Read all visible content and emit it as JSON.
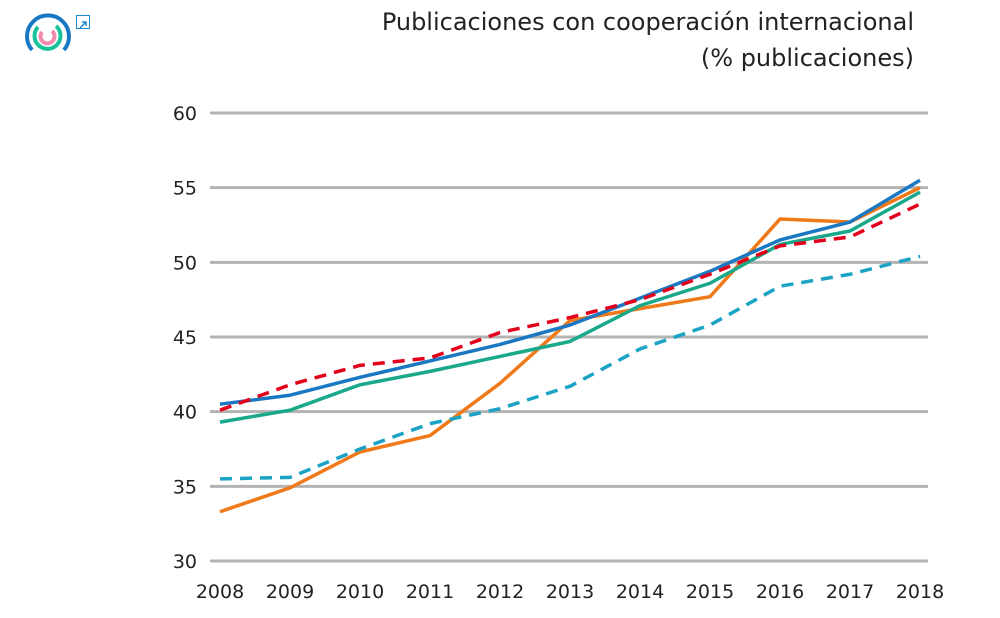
{
  "chart_data": {
    "type": "line",
    "title": "Publicaciones con cooperación internacional",
    "subtitle": "(% publicaciones)",
    "xlabel": "",
    "ylabel": "",
    "ylim": [
      30,
      60
    ],
    "yticks": [
      30,
      35,
      40,
      45,
      50,
      55,
      60
    ],
    "grid": true,
    "x": [
      2008,
      2009,
      2010,
      2011,
      2012,
      2013,
      2014,
      2015,
      2016,
      2017,
      2018
    ],
    "series": [
      {
        "color": "#f07a1a",
        "dash": false,
        "values": [
          33.3,
          34.9,
          37.3,
          38.4,
          41.9,
          46.1,
          46.9,
          47.7,
          52.9,
          52.7,
          55.0
        ]
      },
      {
        "color": "#19a88a",
        "dash": false,
        "values": [
          39.3,
          40.1,
          41.8,
          42.7,
          43.7,
          44.7,
          47.1,
          48.6,
          51.2,
          52.1,
          54.7
        ]
      },
      {
        "color": "#1a78c2",
        "dash": false,
        "values": [
          40.5,
          41.1,
          42.3,
          43.4,
          44.5,
          45.8,
          47.6,
          49.4,
          51.5,
          52.7,
          55.5
        ]
      },
      {
        "color": "#e3001b",
        "dash": true,
        "values": [
          40.1,
          41.8,
          43.1,
          43.6,
          45.3,
          46.3,
          47.5,
          49.2,
          51.1,
          51.7,
          53.9
        ]
      },
      {
        "color": "#1ba3c6",
        "dash": true,
        "values": [
          35.5,
          35.6,
          37.5,
          39.2,
          40.2,
          41.7,
          44.2,
          45.8,
          48.4,
          49.2,
          50.4
        ]
      }
    ]
  },
  "logo": {
    "colors": [
      "#1a78c2",
      "#19c39a",
      "#f28bb0"
    ]
  },
  "icons": {
    "external_link": "external-link-icon"
  }
}
